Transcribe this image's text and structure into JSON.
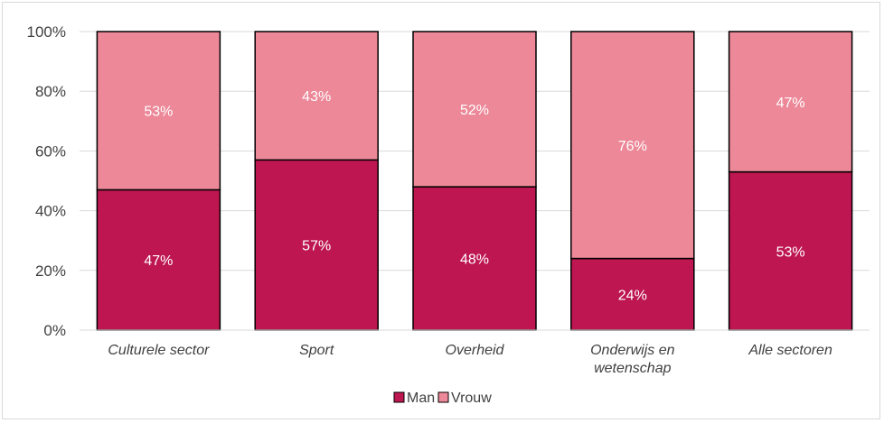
{
  "chart_data": {
    "type": "bar",
    "stacked": true,
    "categories": [
      [
        "Culturele sector"
      ],
      [
        "Sport"
      ],
      [
        "Overheid"
      ],
      [
        "Onderwijs en",
        "wetenschap"
      ],
      [
        "Alle sectoren"
      ]
    ],
    "series": [
      {
        "name": "Man",
        "values": [
          47,
          57,
          48,
          24,
          53
        ],
        "labels": [
          "47%",
          "57%",
          "48%",
          "24%",
          "53%"
        ],
        "color": "#be1650"
      },
      {
        "name": "Vrouw",
        "values": [
          53,
          43,
          52,
          76,
          47
        ],
        "labels": [
          "53%",
          "43%",
          "52%",
          "76%",
          "47%"
        ],
        "color": "#ec8898"
      }
    ],
    "ylim": [
      0,
      100
    ],
    "yticks": [
      "0%",
      "20%",
      "40%",
      "60%",
      "80%",
      "100%"
    ],
    "grid": true,
    "legend_position": "bottom"
  }
}
